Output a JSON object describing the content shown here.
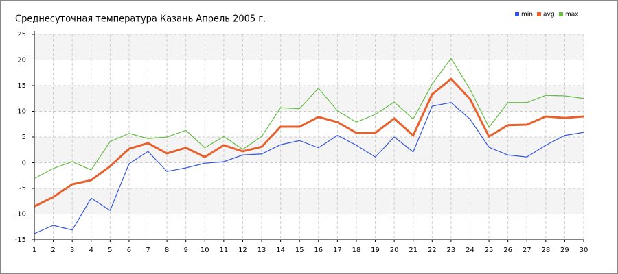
{
  "chart_data": {
    "type": "line",
    "title": "Среднесуточная температура Казань  Апрель 2005 г.",
    "x": [
      1,
      2,
      3,
      4,
      5,
      6,
      7,
      8,
      9,
      10,
      11,
      12,
      13,
      14,
      15,
      16,
      17,
      18,
      19,
      20,
      21,
      22,
      23,
      24,
      25,
      26,
      27,
      28,
      29,
      30
    ],
    "series": [
      {
        "name": "min",
        "color": "#3355dd",
        "values": [
          -13.8,
          -12.2,
          -13.1,
          -6.9,
          -9.3,
          -0.2,
          2.2,
          -1.7,
          -1.0,
          -0.1,
          0.2,
          1.5,
          1.7,
          3.5,
          4.3,
          2.9,
          5.3,
          3.4,
          1.1,
          5.0,
          2.1,
          11.0,
          11.7,
          8.5,
          3.0,
          1.5,
          1.1,
          3.4,
          5.3,
          5.9
        ]
      },
      {
        "name": "avg",
        "color": "#e8602c",
        "values": [
          -8.5,
          -6.7,
          -4.2,
          -3.4,
          -0.7,
          2.7,
          3.8,
          1.8,
          2.9,
          1.1,
          3.4,
          2.2,
          3.1,
          7.0,
          7.0,
          8.9,
          7.9,
          5.8,
          5.8,
          8.6,
          5.3,
          13.3,
          16.3,
          12.4,
          5.1,
          7.3,
          7.4,
          9.0,
          8.7,
          9.0
        ]
      },
      {
        "name": "max",
        "color": "#66bb44",
        "values": [
          -3.1,
          -1.1,
          0.2,
          -1.4,
          4.1,
          5.7,
          4.7,
          5.0,
          6.3,
          2.9,
          5.1,
          2.6,
          5.1,
          10.7,
          10.5,
          14.5,
          10.1,
          7.9,
          9.4,
          11.8,
          8.5,
          15.3,
          20.3,
          14.3,
          6.9,
          11.7,
          11.7,
          13.1,
          13.0,
          12.5
        ]
      }
    ],
    "xlim": [
      1,
      30
    ],
    "xticks": [
      1,
      2,
      3,
      4,
      5,
      6,
      7,
      8,
      9,
      10,
      11,
      12,
      13,
      14,
      15,
      16,
      17,
      18,
      19,
      20,
      21,
      22,
      23,
      24,
      25,
      26,
      27,
      28,
      29,
      30
    ],
    "ylim": [
      -15,
      25
    ],
    "yticks": [
      -15,
      -10,
      -5,
      0,
      5,
      10,
      15,
      20,
      25
    ],
    "grid": true,
    "legend": "top-right"
  }
}
